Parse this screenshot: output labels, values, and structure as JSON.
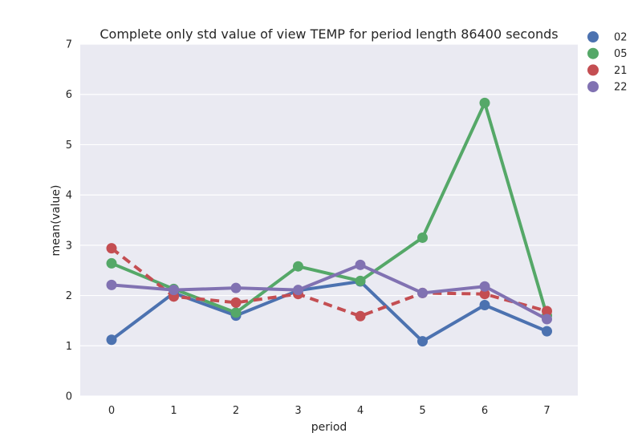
{
  "chart_data": {
    "type": "line",
    "title": "Complete only std value of view TEMP for period length 86400 seconds",
    "xlabel": "period",
    "ylabel": "mean(value)",
    "x": [
      0,
      1,
      2,
      3,
      4,
      5,
      6,
      7
    ],
    "x_tick_labels": [
      "0",
      "1",
      "2",
      "3",
      "4",
      "5",
      "6",
      "7"
    ],
    "ylim": [
      0,
      7
    ],
    "y_ticks": [
      0,
      1,
      2,
      3,
      4,
      5,
      6,
      7
    ],
    "grid": true,
    "legend": "outside-top-right",
    "series": [
      {
        "name": "02",
        "color": "#4c72b0",
        "dashed": false,
        "values": [
          1.12,
          2.05,
          1.6,
          2.1,
          2.28,
          1.09,
          1.81,
          1.29
        ]
      },
      {
        "name": "05",
        "color": "#55a868",
        "dashed": false,
        "values": [
          2.64,
          2.13,
          1.66,
          2.58,
          2.29,
          3.15,
          5.83,
          1.6
        ]
      },
      {
        "name": "21",
        "color": "#c44e52",
        "dashed": true,
        "values": [
          2.94,
          1.98,
          1.86,
          2.03,
          1.59,
          2.05,
          2.03,
          1.69
        ]
      },
      {
        "name": "22",
        "color": "#8172b2",
        "dashed": false,
        "values": [
          2.21,
          2.11,
          2.15,
          2.11,
          2.61,
          2.05,
          2.18,
          1.53
        ]
      }
    ]
  }
}
